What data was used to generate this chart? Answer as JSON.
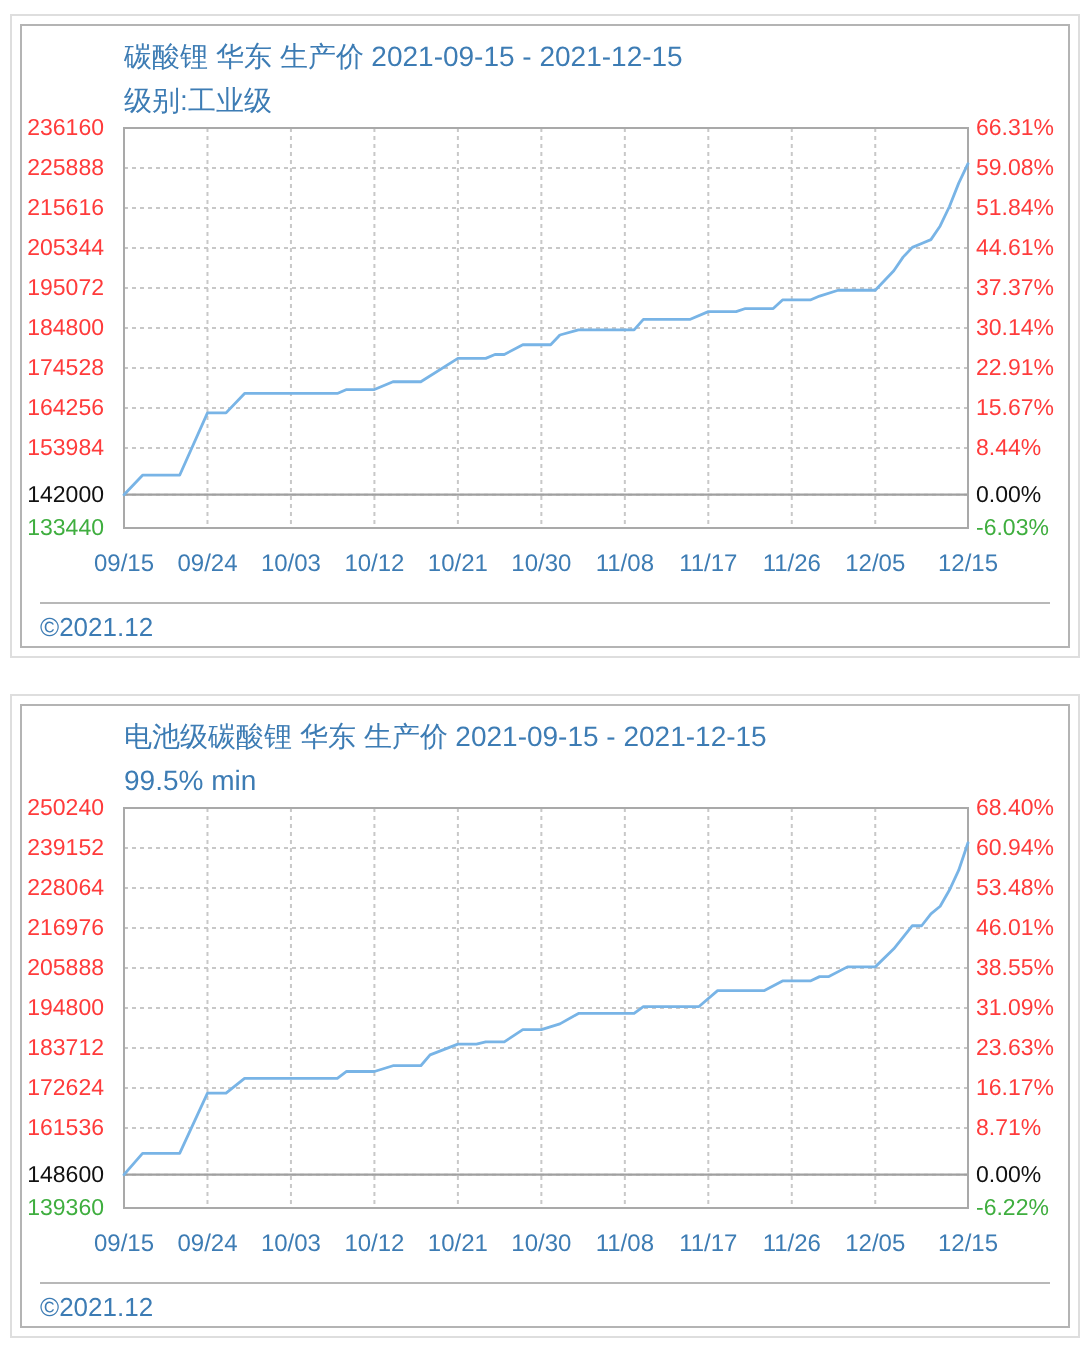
{
  "chart_data": [
    {
      "type": "line",
      "title": "碳酸锂 华东 生产价 2021-09-15 - 2021-12-15",
      "subtitle": "级别:工业级",
      "x": [
        "2021-09-15",
        "2021-09-17",
        "2021-09-21",
        "2021-09-24",
        "2021-09-26",
        "2021-09-28",
        "2021-10-08",
        "2021-10-09",
        "2021-10-12",
        "2021-10-14",
        "2021-10-17",
        "2021-10-21",
        "2021-10-24",
        "2021-10-25",
        "2021-10-26",
        "2021-10-28",
        "2021-10-31",
        "2021-11-01",
        "2021-11-03",
        "2021-11-09",
        "2021-11-10",
        "2021-11-15",
        "2021-11-17",
        "2021-11-20",
        "2021-11-21",
        "2021-11-24",
        "2021-11-25",
        "2021-11-28",
        "2021-11-29",
        "2021-12-01",
        "2021-12-05",
        "2021-12-06",
        "2021-12-07",
        "2021-12-08",
        "2021-12-09",
        "2021-12-10",
        "2021-12-11",
        "2021-12-12",
        "2021-12-13",
        "2021-12-14",
        "2021-12-15"
      ],
      "series": [
        {
          "color": "#78b4e6",
          "values": [
            142000,
            147000,
            147000,
            163000,
            163000,
            168000,
            168000,
            169000,
            169000,
            171000,
            171000,
            177000,
            177000,
            178000,
            178000,
            180500,
            180500,
            183000,
            184300,
            184300,
            187000,
            187000,
            189000,
            189000,
            189800,
            189800,
            192000,
            192000,
            193000,
            194500,
            194500,
            197000,
            199500,
            203000,
            205500,
            206500,
            207500,
            211000,
            216000,
            222000,
            227000
          ]
        }
      ],
      "xlim": [
        "2021-09-15",
        "2021-12-15"
      ],
      "xticks": [
        {
          "value": "2021-09-15",
          "label": "09/15"
        },
        {
          "value": "2021-09-24",
          "label": "09/24"
        },
        {
          "value": "2021-10-03",
          "label": "10/03"
        },
        {
          "value": "2021-10-12",
          "label": "10/12"
        },
        {
          "value": "2021-10-21",
          "label": "10/21"
        },
        {
          "value": "2021-10-30",
          "label": "10/30"
        },
        {
          "value": "2021-11-08",
          "label": "11/08"
        },
        {
          "value": "2021-11-17",
          "label": "11/17"
        },
        {
          "value": "2021-11-26",
          "label": "11/26"
        },
        {
          "value": "2021-12-05",
          "label": "12/05"
        },
        {
          "value": "2021-12-15",
          "label": "12/15"
        }
      ],
      "ylim": [
        133440,
        236160
      ],
      "yticks": [
        236160,
        225888,
        215616,
        205344,
        195072,
        184800,
        174528,
        164256,
        153984,
        142000,
        133440
      ],
      "y2lim": [
        -6.03,
        66.31
      ],
      "y2ticks": [
        {
          "value": 66.31,
          "label": "66.31%"
        },
        {
          "value": 59.08,
          "label": "59.08%"
        },
        {
          "value": 51.84,
          "label": "51.84%"
        },
        {
          "value": 44.61,
          "label": "44.61%"
        },
        {
          "value": 37.37,
          "label": "37.37%"
        },
        {
          "value": 30.14,
          "label": "30.14%"
        },
        {
          "value": 22.91,
          "label": "22.91%"
        },
        {
          "value": 15.67,
          "label": "15.67%"
        },
        {
          "value": 8.44,
          "label": "8.44%"
        },
        {
          "value": 0,
          "label": "0.00%"
        },
        {
          "value": -6.03,
          "label": "-6.03%"
        }
      ],
      "ref_lines": [
        {
          "axis": "y",
          "value": 142000,
          "color": "#a0a0a0"
        }
      ],
      "grid": true,
      "annotations": [
        "©2021.12"
      ]
    },
    {
      "type": "line",
      "title": "电池级碳酸锂 华东 生产价 2021-09-15 - 2021-12-15",
      "subtitle": "99.5% min",
      "x": [
        "2021-09-15",
        "2021-09-17",
        "2021-09-21",
        "2021-09-24",
        "2021-09-26",
        "2021-09-28",
        "2021-10-08",
        "2021-10-09",
        "2021-10-12",
        "2021-10-14",
        "2021-10-17",
        "2021-10-18",
        "2021-10-21",
        "2021-10-23",
        "2021-10-24",
        "2021-10-26",
        "2021-10-28",
        "2021-10-30",
        "2021-11-01",
        "2021-11-03",
        "2021-11-09",
        "2021-11-10",
        "2021-11-16",
        "2021-11-18",
        "2021-11-23",
        "2021-11-25",
        "2021-11-28",
        "2021-11-29",
        "2021-11-30",
        "2021-12-02",
        "2021-12-05",
        "2021-12-07",
        "2021-12-09",
        "2021-12-10",
        "2021-12-11",
        "2021-12-12",
        "2021-12-13",
        "2021-12-14",
        "2021-12-15"
      ],
      "series": [
        {
          "color": "#78b4e6",
          "values": [
            148600,
            154500,
            154500,
            171200,
            171200,
            175300,
            175300,
            177200,
            177200,
            178800,
            178800,
            181800,
            184800,
            184800,
            185400,
            185400,
            188800,
            188800,
            190400,
            193300,
            193300,
            195200,
            195200,
            199600,
            199600,
            202300,
            202300,
            203500,
            203500,
            206200,
            206200,
            211200,
            217600,
            217600,
            220900,
            223000,
            227500,
            233000,
            240600
          ]
        }
      ],
      "xlim": [
        "2021-09-15",
        "2021-12-15"
      ],
      "xticks": [
        {
          "value": "2021-09-15",
          "label": "09/15"
        },
        {
          "value": "2021-09-24",
          "label": "09/24"
        },
        {
          "value": "2021-10-03",
          "label": "10/03"
        },
        {
          "value": "2021-10-12",
          "label": "10/12"
        },
        {
          "value": "2021-10-21",
          "label": "10/21"
        },
        {
          "value": "2021-10-30",
          "label": "10/30"
        },
        {
          "value": "2021-11-08",
          "label": "11/08"
        },
        {
          "value": "2021-11-17",
          "label": "11/17"
        },
        {
          "value": "2021-11-26",
          "label": "11/26"
        },
        {
          "value": "2021-12-05",
          "label": "12/05"
        },
        {
          "value": "2021-12-15",
          "label": "12/15"
        }
      ],
      "ylim": [
        139360,
        250240
      ],
      "yticks": [
        250240,
        239152,
        228064,
        216976,
        205888,
        194800,
        183712,
        172624,
        161536,
        148600,
        139360
      ],
      "y2lim": [
        -6.22,
        68.4
      ],
      "y2ticks": [
        {
          "value": 68.4,
          "label": "68.40%"
        },
        {
          "value": 60.94,
          "label": "60.94%"
        },
        {
          "value": 53.48,
          "label": "53.48%"
        },
        {
          "value": 46.01,
          "label": "46.01%"
        },
        {
          "value": 38.55,
          "label": "38.55%"
        },
        {
          "value": 31.09,
          "label": "31.09%"
        },
        {
          "value": 23.63,
          "label": "23.63%"
        },
        {
          "value": 16.17,
          "label": "16.17%"
        },
        {
          "value": 8.71,
          "label": "8.71%"
        },
        {
          "value": 0,
          "label": "0.00%"
        },
        {
          "value": -6.22,
          "label": "-6.22%"
        }
      ],
      "ref_lines": [
        {
          "axis": "y",
          "value": 148600,
          "color": "#a0a0a0"
        }
      ],
      "grid": true,
      "annotations": [
        "©2021.12"
      ]
    }
  ]
}
